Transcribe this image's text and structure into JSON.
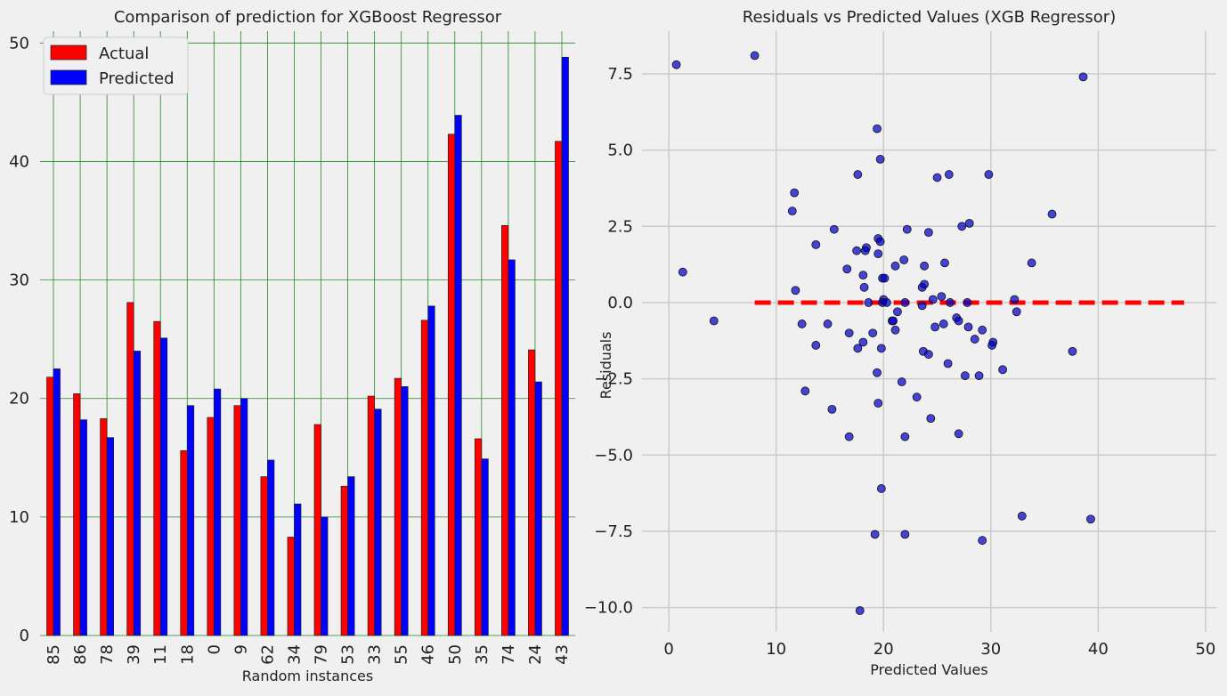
{
  "chart_data": [
    {
      "type": "bar",
      "title": "Comparison of prediction for XGBoost Regressor",
      "xlabel": "Random instances",
      "ylabel": "",
      "categories": [
        "85",
        "86",
        "78",
        "39",
        "11",
        "18",
        "0",
        "9",
        "62",
        "34",
        "79",
        "53",
        "33",
        "55",
        "46",
        "50",
        "35",
        "74",
        "24",
        "43"
      ],
      "series": [
        {
          "name": "Actual",
          "color": "#ff0000",
          "values": [
            21.8,
            20.4,
            18.3,
            28.1,
            26.5,
            15.6,
            18.4,
            19.4,
            13.4,
            8.3,
            17.8,
            12.6,
            20.2,
            21.7,
            26.6,
            42.3,
            16.6,
            34.6,
            24.1,
            41.7
          ]
        },
        {
          "name": "Predicted",
          "color": "#0000ff",
          "values": [
            22.5,
            18.2,
            16.7,
            24.0,
            25.1,
            19.4,
            20.8,
            20.0,
            14.8,
            11.1,
            10.0,
            13.4,
            19.1,
            21.0,
            27.8,
            43.9,
            14.9,
            31.7,
            21.4,
            48.8
          ]
        }
      ],
      "ylim": [
        0,
        51
      ],
      "yticks": [
        0,
        10,
        20,
        30,
        40,
        50
      ],
      "grid": true,
      "grid_color": "#228b22",
      "legend_position": "top-left"
    },
    {
      "type": "scatter",
      "title": "Residuals vs Predicted Values (XGB Regressor)",
      "xlabel": "Predicted Values",
      "ylabel": "Residuals",
      "xlim": [
        -2.5,
        51
      ],
      "ylim": [
        -10.8,
        8.9
      ],
      "xticks": [
        0,
        10,
        20,
        30,
        40,
        50
      ],
      "yticks": [
        7.5,
        5.0,
        2.5,
        0.0,
        -2.5,
        -5.0,
        -7.5,
        -10.0
      ],
      "ytick_labels": [
        "7.5",
        "5.0",
        "2.5",
        "0.0",
        "−2.5",
        "−5.0",
        "−7.5",
        "−10.0"
      ],
      "grid": true,
      "grid_color": "#cbcbcb",
      "point_color": "#0000cc",
      "points": [
        [
          0.7,
          7.8
        ],
        [
          8.0,
          8.1
        ],
        [
          38.6,
          7.4
        ],
        [
          1.3,
          1.0
        ],
        [
          4.2,
          -0.6
        ],
        [
          19.4,
          5.7
        ],
        [
          19.7,
          4.7
        ],
        [
          17.6,
          4.2
        ],
        [
          26.1,
          4.2
        ],
        [
          29.8,
          4.2
        ],
        [
          25.0,
          4.1
        ],
        [
          11.7,
          3.6
        ],
        [
          11.5,
          3.0
        ],
        [
          35.7,
          2.9
        ],
        [
          28.0,
          2.6
        ],
        [
          15.4,
          2.4
        ],
        [
          22.2,
          2.4
        ],
        [
          27.3,
          2.5
        ],
        [
          24.2,
          2.3
        ],
        [
          19.5,
          2.1
        ],
        [
          19.7,
          2.0
        ],
        [
          13.7,
          1.9
        ],
        [
          18.4,
          1.8
        ],
        [
          18.3,
          1.7
        ],
        [
          17.5,
          1.7
        ],
        [
          19.5,
          1.6
        ],
        [
          21.9,
          1.4
        ],
        [
          25.7,
          1.3
        ],
        [
          33.8,
          1.3
        ],
        [
          21.1,
          1.2
        ],
        [
          23.8,
          1.2
        ],
        [
          16.6,
          1.1
        ],
        [
          18.1,
          0.9
        ],
        [
          19.9,
          0.8
        ],
        [
          20.1,
          0.8
        ],
        [
          23.6,
          0.5
        ],
        [
          23.8,
          0.6
        ],
        [
          18.2,
          0.5
        ],
        [
          11.8,
          0.4
        ],
        [
          25.4,
          0.2
        ],
        [
          20.0,
          0.1
        ],
        [
          24.6,
          0.1
        ],
        [
          32.2,
          0.1
        ],
        [
          18.6,
          0.0
        ],
        [
          19.9,
          0.0
        ],
        [
          20.3,
          0.0
        ],
        [
          22.0,
          0.0
        ],
        [
          26.2,
          0.0
        ],
        [
          27.8,
          0.0
        ],
        [
          23.6,
          -0.1
        ],
        [
          21.3,
          -0.3
        ],
        [
          32.4,
          -0.3
        ],
        [
          20.8,
          -0.6
        ],
        [
          20.9,
          -0.6
        ],
        [
          26.8,
          -0.5
        ],
        [
          27.0,
          -0.6
        ],
        [
          25.6,
          -0.7
        ],
        [
          12.4,
          -0.7
        ],
        [
          14.8,
          -0.7
        ],
        [
          24.8,
          -0.8
        ],
        [
          27.9,
          -0.8
        ],
        [
          21.1,
          -0.9
        ],
        [
          19.0,
          -1.0
        ],
        [
          16.8,
          -1.0
        ],
        [
          29.2,
          -0.9
        ],
        [
          18.1,
          -1.3
        ],
        [
          13.7,
          -1.4
        ],
        [
          28.5,
          -1.2
        ],
        [
          30.2,
          -1.3
        ],
        [
          30.1,
          -1.4
        ],
        [
          19.8,
          -1.5
        ],
        [
          17.6,
          -1.5
        ],
        [
          23.7,
          -1.6
        ],
        [
          24.2,
          -1.7
        ],
        [
          37.6,
          -1.6
        ],
        [
          26.0,
          -2.0
        ],
        [
          31.1,
          -2.2
        ],
        [
          19.4,
          -2.3
        ],
        [
          27.6,
          -2.4
        ],
        [
          28.9,
          -2.4
        ],
        [
          21.7,
          -2.6
        ],
        [
          12.7,
          -2.9
        ],
        [
          23.1,
          -3.1
        ],
        [
          19.5,
          -3.3
        ],
        [
          15.2,
          -3.5
        ],
        [
          24.4,
          -3.8
        ],
        [
          27.0,
          -4.3
        ],
        [
          16.8,
          -4.4
        ],
        [
          22.0,
          -4.4
        ],
        [
          19.8,
          -6.1
        ],
        [
          32.9,
          -7.0
        ],
        [
          39.3,
          -7.1
        ],
        [
          19.2,
          -7.6
        ],
        [
          22.0,
          -7.6
        ],
        [
          29.2,
          -7.8
        ],
        [
          17.8,
          -10.1
        ]
      ],
      "reference_line": {
        "y": 0,
        "x_start": 8,
        "x_end": 48,
        "color": "#ff0000",
        "style": "dashed"
      }
    }
  ]
}
